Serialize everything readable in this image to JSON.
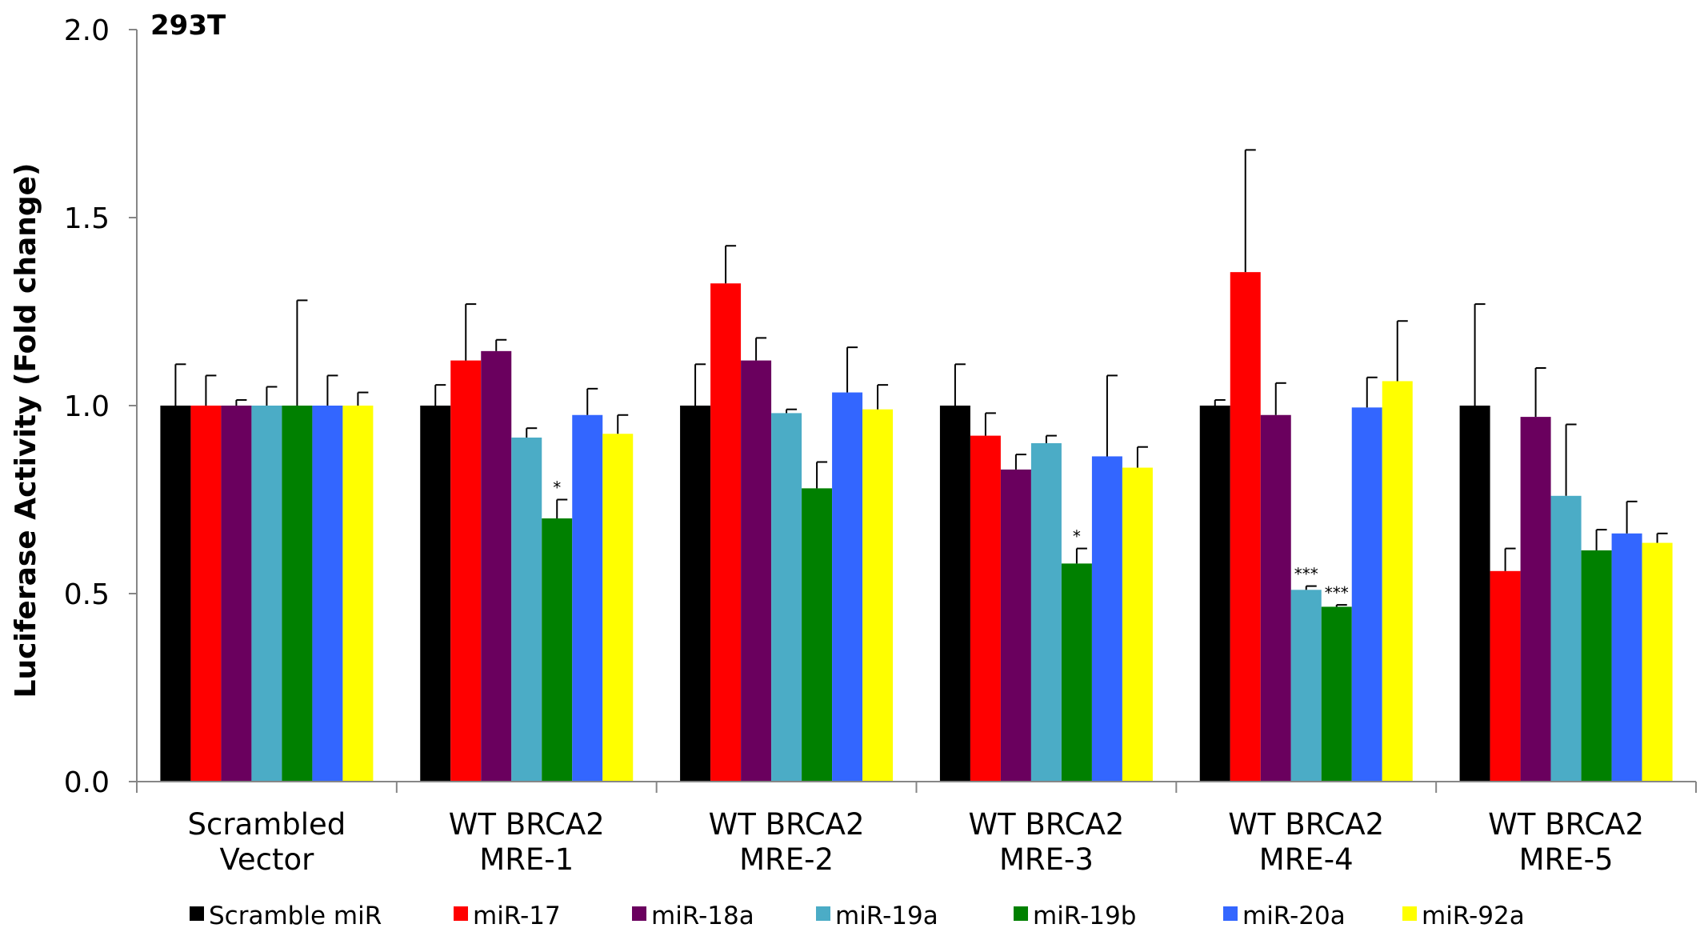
{
  "chart_data": {
    "type": "bar",
    "title": "293T",
    "xlabel": "",
    "ylabel": "Luciferase Activity (Fold change)",
    "ylim": [
      0,
      2.0
    ],
    "yticks": [
      {
        "value": 0.0,
        "label": "0.0"
      },
      {
        "value": 0.5,
        "label": "0.5"
      },
      {
        "value": 1.0,
        "label": "1.0"
      },
      {
        "value": 1.5,
        "label": "1.5"
      },
      {
        "value": 2.0,
        "label": "2.0"
      }
    ],
    "grid": false,
    "legend_position": "bottom",
    "categories": [
      [
        "Scrambled",
        "Vector"
      ],
      [
        "WT BRCA2",
        "MRE-1"
      ],
      [
        "WT BRCA2",
        "MRE-2"
      ],
      [
        "WT BRCA2",
        "MRE-3"
      ],
      [
        "WT BRCA2",
        "MRE-4"
      ],
      [
        "WT BRCA2",
        "MRE-5"
      ]
    ],
    "series": [
      {
        "name": "Scramble miR",
        "color": "#000000",
        "values": [
          1.0,
          1.0,
          1.0,
          1.0,
          1.0,
          1.0
        ],
        "errors": [
          0.11,
          0.055,
          0.11,
          0.11,
          0.015,
          0.27
        ],
        "annotations": [
          "",
          "",
          "",
          "",
          "",
          ""
        ]
      },
      {
        "name": "miR-17",
        "color": "#ff0000",
        "values": [
          1.0,
          1.12,
          1.325,
          0.92,
          1.355,
          0.56
        ],
        "errors": [
          0.08,
          0.15,
          0.1,
          0.06,
          0.325,
          0.06
        ],
        "annotations": [
          "",
          "",
          "",
          "",
          "",
          ""
        ]
      },
      {
        "name": "miR-18a",
        "color": "#6a005e",
        "values": [
          1.0,
          1.145,
          1.12,
          0.83,
          0.975,
          0.97
        ],
        "errors": [
          0.015,
          0.03,
          0.06,
          0.04,
          0.085,
          0.13
        ],
        "annotations": [
          "",
          "",
          "",
          "",
          "",
          ""
        ]
      },
      {
        "name": "miR-19a",
        "color": "#4bacc6",
        "values": [
          1.0,
          0.915,
          0.98,
          0.9,
          0.51,
          0.76
        ],
        "errors": [
          0.05,
          0.025,
          0.01,
          0.02,
          0.01,
          0.19
        ],
        "annotations": [
          "",
          "",
          "",
          "",
          "***",
          ""
        ]
      },
      {
        "name": "miR-19b",
        "color": "#008000",
        "values": [
          1.0,
          0.7,
          0.78,
          0.58,
          0.465,
          0.615
        ],
        "errors": [
          0.28,
          0.05,
          0.07,
          0.04,
          0.005,
          0.055
        ],
        "annotations": [
          "",
          "*",
          "",
          "*",
          "***",
          ""
        ]
      },
      {
        "name": "miR-20a",
        "color": "#3366ff",
        "values": [
          1.0,
          0.975,
          1.035,
          0.865,
          0.995,
          0.66
        ],
        "errors": [
          0.08,
          0.07,
          0.12,
          0.215,
          0.08,
          0.085
        ],
        "annotations": [
          "",
          "",
          "",
          "",
          "",
          ""
        ]
      },
      {
        "name": "miR-92a",
        "color": "#ffff00",
        "values": [
          1.0,
          0.925,
          0.99,
          0.835,
          1.065,
          0.635
        ],
        "errors": [
          0.035,
          0.05,
          0.065,
          0.055,
          0.16,
          0.025
        ],
        "annotations": [
          "",
          "",
          "",
          "",
          "",
          ""
        ]
      }
    ]
  }
}
